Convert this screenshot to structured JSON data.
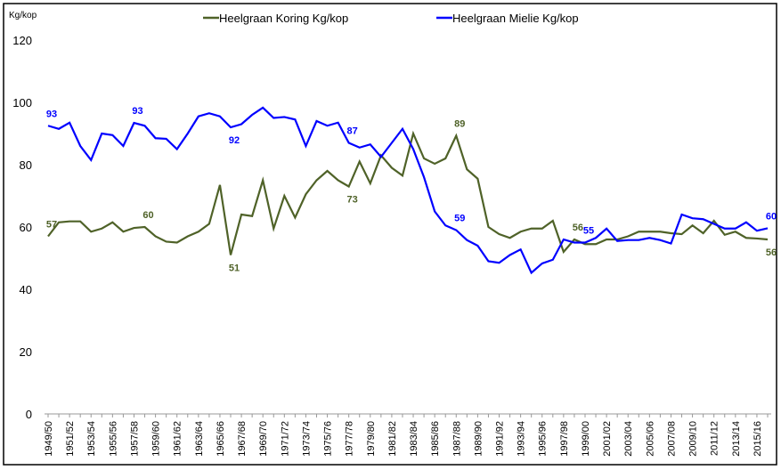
{
  "chart_data": {
    "type": "line",
    "y_unit_label": "Kg/kop",
    "categories": [
      "1949/50",
      null,
      "1951/52",
      null,
      "1953/54",
      null,
      "1955/56",
      null,
      "1957/58",
      null,
      "1959/60",
      null,
      "1961/62",
      null,
      "1963/64",
      null,
      "1965/66",
      null,
      "1967/68",
      null,
      "1969/70",
      null,
      "1971/72",
      null,
      "1973/74",
      null,
      "1975/76",
      null,
      "1977/78",
      null,
      "1979/80",
      null,
      "1981/82",
      null,
      "1983/84",
      null,
      "1985/86",
      null,
      "1987/88",
      null,
      "1989/90",
      null,
      "1991/92",
      null,
      "1993/94",
      null,
      "1995/96",
      null,
      "1997/98",
      null,
      "1999/00",
      null,
      "2001/02",
      null,
      "2003/04",
      null,
      "2005/06",
      null,
      "2007/08",
      null,
      "2009/10",
      null,
      "2011/12",
      null,
      "2013/14",
      null,
      "2015/16",
      null
    ],
    "series": [
      {
        "name": "Heelgraan Koring Kg/kop",
        "color": "#4f6228",
        "values": [
          57,
          61.5,
          61.8,
          61.8,
          58.5,
          59.5,
          61.5,
          58.5,
          59.7,
          60,
          57,
          55.3,
          55,
          57,
          58.5,
          61,
          73.5,
          51,
          64,
          63.5,
          75,
          59.5,
          70,
          63,
          70.5,
          75,
          78,
          75,
          73,
          81,
          74,
          83,
          79,
          76.5,
          90,
          82,
          80.3,
          82,
          89.3,
          78.5,
          75.5,
          60,
          57.7,
          56.5,
          58.5,
          59.5,
          59.5,
          62,
          52,
          56,
          54.5,
          54.5,
          56,
          56,
          57,
          58.5,
          58.5,
          58.5,
          58,
          57.7,
          60.5,
          58,
          62,
          57.5,
          58.5,
          56.5,
          56.3,
          56
        ],
        "value_labels": [
          "57",
          null,
          null,
          null,
          null,
          null,
          null,
          null,
          null,
          "60",
          null,
          null,
          null,
          null,
          null,
          null,
          null,
          "51",
          null,
          null,
          null,
          null,
          null,
          null,
          null,
          null,
          null,
          null,
          "73",
          null,
          null,
          null,
          null,
          null,
          null,
          null,
          null,
          null,
          "89",
          null,
          null,
          null,
          null,
          null,
          null,
          null,
          null,
          null,
          null,
          "56",
          null,
          null,
          null,
          null,
          null,
          null,
          null,
          null,
          null,
          null,
          null,
          null,
          null,
          null,
          null,
          null,
          null,
          "56"
        ]
      },
      {
        "name": "Heelgraan Mielie Kg/kop",
        "color": "#0000ff",
        "values": [
          92.5,
          91.5,
          93.5,
          86,
          81.5,
          90,
          89.5,
          86,
          93.4,
          92.5,
          88.5,
          88.3,
          85,
          90,
          95.5,
          96.5,
          95.5,
          92,
          93,
          96,
          98.3,
          95,
          95.3,
          94.5,
          86,
          94,
          92.5,
          93.5,
          87,
          85.5,
          86.5,
          82.5,
          87,
          91.5,
          85,
          76,
          65,
          60.5,
          59,
          55.8,
          54,
          49,
          48.5,
          51,
          52.8,
          45.3,
          48.3,
          49.5,
          56,
          55,
          55,
          56.5,
          59.5,
          55.5,
          55.8,
          55.8,
          56.5,
          55.8,
          54.7,
          64,
          62.8,
          62.5,
          61,
          59.5,
          59.5,
          61.5,
          58.8,
          59.6
        ],
        "value_labels": [
          "93",
          null,
          null,
          null,
          null,
          null,
          null,
          null,
          "93",
          null,
          null,
          null,
          null,
          null,
          null,
          null,
          null,
          "92",
          null,
          null,
          null,
          null,
          null,
          null,
          null,
          null,
          null,
          null,
          "87",
          null,
          null,
          null,
          null,
          null,
          null,
          null,
          null,
          null,
          "59",
          null,
          null,
          null,
          null,
          null,
          null,
          null,
          null,
          null,
          null,
          null,
          "55",
          null,
          null,
          null,
          null,
          null,
          null,
          null,
          null,
          null,
          null,
          null,
          null,
          null,
          null,
          null,
          null,
          "60"
        ]
      }
    ],
    "ylim": [
      0,
      120
    ],
    "yticks": [
      0,
      20,
      40,
      60,
      80,
      100,
      120
    ],
    "grid": false
  }
}
